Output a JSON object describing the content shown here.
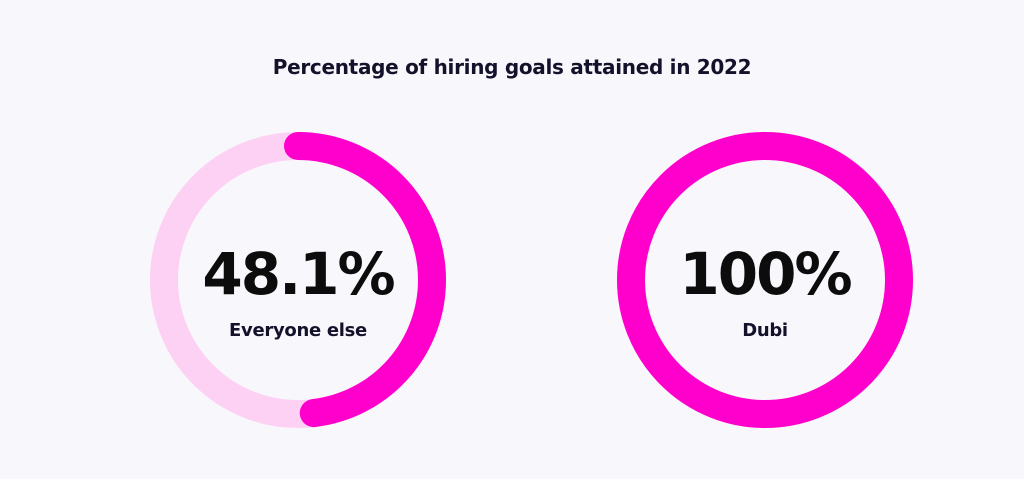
{
  "chart_data": {
    "type": "pie",
    "title": "Percentage of hiring goals attained in 2022",
    "charts": [
      {
        "name": "Everyone else",
        "value": 48.1,
        "display_value": "48.1%",
        "track_color": "#fdd1f3",
        "fill_color": "#ff00cc"
      },
      {
        "name": "Dubi",
        "value": 100,
        "display_value": "100%",
        "track_color": "#fdd1f3",
        "fill_color": "#ff00cc"
      }
    ]
  }
}
